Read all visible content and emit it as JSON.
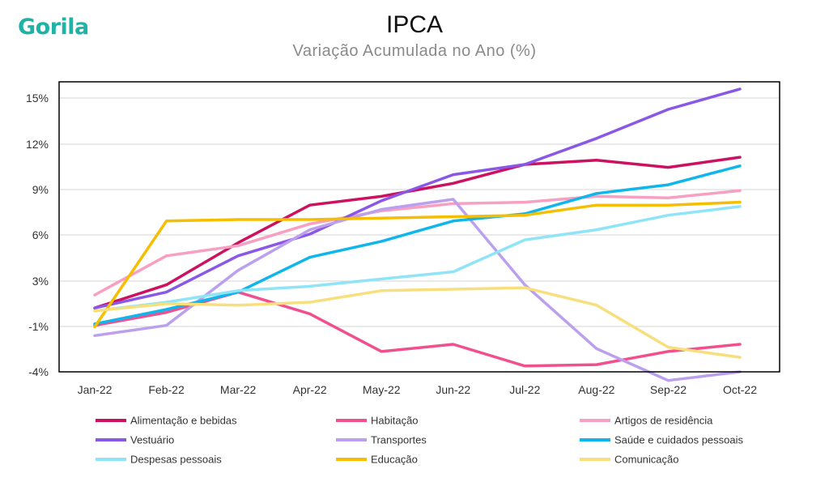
{
  "brand": {
    "logo_text": "Gorila"
  },
  "chart_data": {
    "type": "line",
    "title": "IPCA",
    "subtitle": "Variação Acumulada no Ano (%)",
    "xlabel": "",
    "ylabel": "",
    "categories": [
      "Jan-22",
      "Feb-22",
      "Mar-22",
      "Apr-22",
      "May-22",
      "Jun-22",
      "Jul-22",
      "Aug-22",
      "Sep-22",
      "Oct-22"
    ],
    "y_ticks": [
      "15%",
      "12%",
      "9%",
      "6%",
      "3%",
      "-1%",
      "-4%"
    ],
    "ylim": [
      -4,
      16
    ],
    "grid": "horizontal",
    "legend_position": "bottom",
    "series": [
      {
        "name": "Alimentação e bebidas",
        "color": "#cc1160",
        "values": [
          0.4,
          2.0,
          4.9,
          7.5,
          8.1,
          9.0,
          10.3,
          10.6,
          10.1,
          10.8
        ]
      },
      {
        "name": "Habitação",
        "color": "#f0508e",
        "values": [
          -0.8,
          0.1,
          1.5,
          0.0,
          -2.6,
          -2.1,
          -3.6,
          -3.5,
          -2.6,
          -2.1
        ]
      },
      {
        "name": "Artigos de residência",
        "color": "#f8a0c2",
        "values": [
          1.3,
          4.0,
          4.7,
          6.2,
          7.1,
          7.6,
          7.7,
          8.1,
          8.0,
          8.5
        ]
      },
      {
        "name": "Vestuário",
        "color": "#8a58e6",
        "values": [
          0.4,
          1.5,
          4.0,
          5.5,
          7.8,
          9.6,
          10.3,
          12.1,
          14.1,
          15.5
        ]
      },
      {
        "name": "Transportes",
        "color": "#bba0ee",
        "values": [
          -1.5,
          -0.8,
          3.0,
          5.8,
          7.2,
          7.9,
          2.0,
          -2.4,
          -4.6,
          -4.0
        ]
      },
      {
        "name": "Saúde e cuidados pessoais",
        "color": "#0fb6ec",
        "values": [
          -0.7,
          0.3,
          1.5,
          3.9,
          5.0,
          6.4,
          6.9,
          8.3,
          8.9,
          10.2
        ]
      },
      {
        "name": "Despesas pessoais",
        "color": "#90e4f8",
        "values": [
          0.2,
          0.8,
          1.6,
          1.9,
          2.4,
          2.9,
          5.1,
          5.8,
          6.8,
          7.4
        ]
      },
      {
        "name": "Educação",
        "color": "#f5bf00",
        "values": [
          -0.9,
          6.4,
          6.5,
          6.5,
          6.6,
          6.7,
          6.8,
          7.5,
          7.5,
          7.7
        ]
      },
      {
        "name": "Comunicação",
        "color": "#f8df7e",
        "values": [
          0.2,
          0.7,
          0.6,
          0.8,
          1.6,
          1.7,
          1.8,
          0.6,
          -2.3,
          -3.0
        ]
      }
    ]
  }
}
